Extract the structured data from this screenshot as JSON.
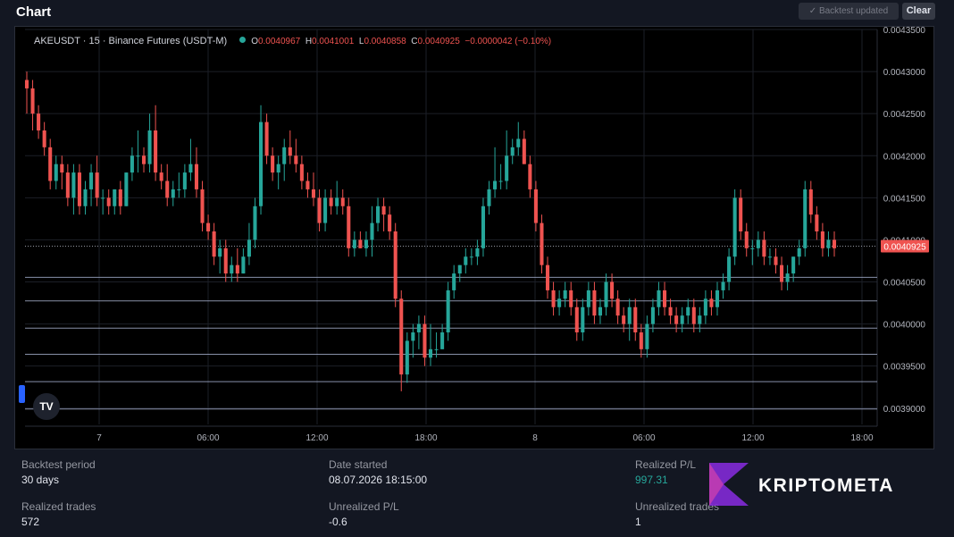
{
  "window": {
    "title": "Chart"
  },
  "toolbar": {
    "status_label": "✓ Backtest updated",
    "clear_label": "Clear"
  },
  "legend": {
    "symbol": "AKEUSDT · 15 · Binance Futures (USDT-M)",
    "open_label": "O",
    "open": "0.0040967",
    "high_label": "H",
    "high": "0.0041001",
    "low_label": "L",
    "low": "0.0040858",
    "close_label": "C",
    "close": "0.0040925",
    "change": "−0.0000042 (−0.10%)"
  },
  "colors": {
    "up": "#26a69a",
    "down": "#ef5350",
    "background": "#000000",
    "level_line": "#aab4d4"
  },
  "chart_data": {
    "type": "candlestick",
    "title": "",
    "price_axis_ticks": [
      "0.0043500",
      "0.0043000",
      "0.0042500",
      "0.0042000",
      "0.0041500",
      "0.0041000",
      "0.0040500",
      "0.0040000",
      "0.0039500",
      "0.0039000"
    ],
    "time_axis_ticks": [
      "7",
      "06:00",
      "12:00",
      "18:00",
      "8",
      "06:00",
      "12:00",
      "18:00"
    ],
    "ylim": [
      0.0038955,
      0.00435
    ],
    "last_price_label": "0.0040925",
    "last_price": 0.0040925,
    "level_lines": [
      0.0040555,
      0.0040275,
      0.003995,
      0.003964,
      0.0039315,
      0.003899
    ],
    "grid": true,
    "candles": [
      [
        0.00429,
        0.0043,
        0.00425,
        0.00428
      ],
      [
        0.00428,
        0.00429,
        0.00423,
        0.00425
      ],
      [
        0.00425,
        0.00426,
        0.00422,
        0.00423
      ],
      [
        0.00423,
        0.00424,
        0.0042,
        0.00421
      ],
      [
        0.00421,
        0.00422,
        0.00416,
        0.00417
      ],
      [
        0.00417,
        0.0042,
        0.00416,
        0.00419
      ],
      [
        0.00419,
        0.0042,
        0.00416,
        0.00418
      ],
      [
        0.00418,
        0.00419,
        0.00414,
        0.00415
      ],
      [
        0.00415,
        0.00419,
        0.00413,
        0.00418
      ],
      [
        0.00418,
        0.00419,
        0.00413,
        0.00414
      ],
      [
        0.00414,
        0.00417,
        0.00413,
        0.00416
      ],
      [
        0.00416,
        0.00419,
        0.00414,
        0.00418
      ],
      [
        0.00418,
        0.0042,
        0.00414,
        0.00415
      ],
      [
        0.00415,
        0.00416,
        0.00413,
        0.00415
      ],
      [
        0.00415,
        0.00416,
        0.00413,
        0.00414
      ],
      [
        0.00414,
        0.00416,
        0.00413,
        0.00416
      ],
      [
        0.00416,
        0.00417,
        0.00413,
        0.00414
      ],
      [
        0.00414,
        0.00418,
        0.00414,
        0.00418
      ],
      [
        0.00418,
        0.00421,
        0.00417,
        0.0042
      ],
      [
        0.0042,
        0.00423,
        0.00418,
        0.0042
      ],
      [
        0.0042,
        0.00421,
        0.00418,
        0.00419
      ],
      [
        0.00419,
        0.00425,
        0.00418,
        0.00423
      ],
      [
        0.00423,
        0.00426,
        0.00417,
        0.00418
      ],
      [
        0.00418,
        0.00419,
        0.00416,
        0.00417
      ],
      [
        0.00417,
        0.00419,
        0.00414,
        0.00415
      ],
      [
        0.00415,
        0.00417,
        0.00414,
        0.00416
      ],
      [
        0.00416,
        0.00418,
        0.00415,
        0.00416
      ],
      [
        0.00416,
        0.00419,
        0.00415,
        0.00418
      ],
      [
        0.00418,
        0.00422,
        0.00417,
        0.00419
      ],
      [
        0.00419,
        0.00421,
        0.00415,
        0.00416
      ],
      [
        0.00416,
        0.00417,
        0.00411,
        0.00412
      ],
      [
        0.00412,
        0.00413,
        0.0041,
        0.00411
      ],
      [
        0.00411,
        0.00412,
        0.00407,
        0.00408
      ],
      [
        0.00408,
        0.0041,
        0.00406,
        0.00409
      ],
      [
        0.00409,
        0.0041,
        0.00405,
        0.00406
      ],
      [
        0.00406,
        0.00408,
        0.00405,
        0.00407
      ],
      [
        0.00407,
        0.00409,
        0.00405,
        0.00406
      ],
      [
        0.00406,
        0.00409,
        0.00406,
        0.00408
      ],
      [
        0.00408,
        0.00412,
        0.00407,
        0.0041
      ],
      [
        0.0041,
        0.00415,
        0.00409,
        0.00414
      ],
      [
        0.00414,
        0.00426,
        0.00413,
        0.00424
      ],
      [
        0.00424,
        0.00425,
        0.00419,
        0.0042
      ],
      [
        0.0042,
        0.00421,
        0.00417,
        0.00418
      ],
      [
        0.00418,
        0.0042,
        0.00416,
        0.00419
      ],
      [
        0.00419,
        0.00422,
        0.00417,
        0.00421
      ],
      [
        0.00421,
        0.00423,
        0.00419,
        0.0042
      ],
      [
        0.0042,
        0.00422,
        0.00418,
        0.00419
      ],
      [
        0.00419,
        0.0042,
        0.00416,
        0.00417
      ],
      [
        0.00417,
        0.00418,
        0.00415,
        0.00416
      ],
      [
        0.00416,
        0.00418,
        0.00414,
        0.00415
      ],
      [
        0.00415,
        0.00416,
        0.00411,
        0.00412
      ],
      [
        0.00412,
        0.00416,
        0.00411,
        0.00415
      ],
      [
        0.00415,
        0.00416,
        0.00413,
        0.00414
      ],
      [
        0.00414,
        0.00417,
        0.00413,
        0.00415
      ],
      [
        0.00415,
        0.00416,
        0.00413,
        0.00414
      ],
      [
        0.00414,
        0.00415,
        0.00408,
        0.00409
      ],
      [
        0.00409,
        0.00411,
        0.00408,
        0.0041
      ],
      [
        0.0041,
        0.00411,
        0.00409,
        0.00409
      ],
      [
        0.00409,
        0.00411,
        0.00408,
        0.0041
      ],
      [
        0.0041,
        0.00414,
        0.00408,
        0.00412
      ],
      [
        0.00412,
        0.00415,
        0.00411,
        0.00414
      ],
      [
        0.00414,
        0.00415,
        0.00411,
        0.00413
      ],
      [
        0.00413,
        0.00414,
        0.0041,
        0.00411
      ],
      [
        0.00411,
        0.00412,
        0.00402,
        0.00403
      ],
      [
        0.00403,
        0.00404,
        0.00392,
        0.00394
      ],
      [
        0.00394,
        0.00399,
        0.00393,
        0.00398
      ],
      [
        0.00398,
        0.004,
        0.00396,
        0.00399
      ],
      [
        0.00399,
        0.00401,
        0.00397,
        0.004
      ],
      [
        0.004,
        0.00401,
        0.00395,
        0.00396
      ],
      [
        0.00396,
        0.004,
        0.00395,
        0.00397
      ],
      [
        0.00397,
        0.00399,
        0.00396,
        0.00397
      ],
      [
        0.00397,
        0.004,
        0.00397,
        0.00399
      ],
      [
        0.00399,
        0.00405,
        0.00398,
        0.00404
      ],
      [
        0.00404,
        0.00407,
        0.00403,
        0.00406
      ],
      [
        0.00406,
        0.00407,
        0.00405,
        0.00407
      ],
      [
        0.00407,
        0.00409,
        0.00406,
        0.00408
      ],
      [
        0.00408,
        0.00409,
        0.00407,
        0.00408
      ],
      [
        0.00408,
        0.0041,
        0.00407,
        0.00409
      ],
      [
        0.00409,
        0.00415,
        0.00408,
        0.00414
      ],
      [
        0.00414,
        0.00417,
        0.00413,
        0.00416
      ],
      [
        0.00416,
        0.00421,
        0.00415,
        0.00417
      ],
      [
        0.00417,
        0.00419,
        0.00416,
        0.00417
      ],
      [
        0.00417,
        0.00423,
        0.00416,
        0.0042
      ],
      [
        0.0042,
        0.00422,
        0.00419,
        0.00421
      ],
      [
        0.00421,
        0.00424,
        0.0042,
        0.00422
      ],
      [
        0.00422,
        0.00423,
        0.00419,
        0.00419
      ],
      [
        0.00419,
        0.0042,
        0.00415,
        0.00416
      ],
      [
        0.00416,
        0.00417,
        0.00411,
        0.00412
      ],
      [
        0.00412,
        0.00413,
        0.00406,
        0.00407
      ],
      [
        0.00407,
        0.00408,
        0.00403,
        0.00404
      ],
      [
        0.00404,
        0.00405,
        0.00401,
        0.00402
      ],
      [
        0.00402,
        0.00404,
        0.00401,
        0.00403
      ],
      [
        0.00403,
        0.00405,
        0.00402,
        0.00404
      ],
      [
        0.00404,
        0.00405,
        0.00401,
        0.00402
      ],
      [
        0.00402,
        0.00403,
        0.00398,
        0.00399
      ],
      [
        0.00399,
        0.00403,
        0.00398,
        0.00402
      ],
      [
        0.00402,
        0.00405,
        0.00401,
        0.00404
      ],
      [
        0.00404,
        0.00405,
        0.004,
        0.00401
      ],
      [
        0.00401,
        0.00403,
        0.004,
        0.00402
      ],
      [
        0.00402,
        0.00406,
        0.00401,
        0.00405
      ],
      [
        0.00405,
        0.00406,
        0.00402,
        0.00403
      ],
      [
        0.00403,
        0.00404,
        0.004,
        0.00401
      ],
      [
        0.00401,
        0.00402,
        0.00399,
        0.004
      ],
      [
        0.004,
        0.00403,
        0.00398,
        0.00402
      ],
      [
        0.00402,
        0.00403,
        0.00398,
        0.00399
      ],
      [
        0.00399,
        0.004,
        0.00396,
        0.00397
      ],
      [
        0.00397,
        0.00401,
        0.00396,
        0.004
      ],
      [
        0.004,
        0.00403,
        0.00399,
        0.00402
      ],
      [
        0.00402,
        0.00405,
        0.00401,
        0.00404
      ],
      [
        0.00404,
        0.00405,
        0.00401,
        0.00402
      ],
      [
        0.00402,
        0.00403,
        0.004,
        0.00401
      ],
      [
        0.00401,
        0.00402,
        0.00399,
        0.004
      ],
      [
        0.004,
        0.00402,
        0.00399,
        0.00401
      ],
      [
        0.00401,
        0.00403,
        0.004,
        0.00402
      ],
      [
        0.00402,
        0.00403,
        0.00399,
        0.004
      ],
      [
        0.004,
        0.00402,
        0.00399,
        0.00401
      ],
      [
        0.00401,
        0.00404,
        0.004,
        0.00403
      ],
      [
        0.00403,
        0.00404,
        0.00401,
        0.00402
      ],
      [
        0.00402,
        0.00405,
        0.00401,
        0.00404
      ],
      [
        0.00404,
        0.00406,
        0.00403,
        0.00405
      ],
      [
        0.00405,
        0.00409,
        0.00404,
        0.00408
      ],
      [
        0.00408,
        0.00416,
        0.00407,
        0.00415
      ],
      [
        0.00415,
        0.00416,
        0.0041,
        0.00411
      ],
      [
        0.00411,
        0.00412,
        0.00408,
        0.00409
      ],
      [
        0.00409,
        0.0041,
        0.00407,
        0.00409
      ],
      [
        0.00409,
        0.00411,
        0.00408,
        0.0041
      ],
      [
        0.0041,
        0.00411,
        0.00407,
        0.00408
      ],
      [
        0.00408,
        0.00409,
        0.00407,
        0.00408
      ],
      [
        0.00408,
        0.00409,
        0.00406,
        0.00407
      ],
      [
        0.00407,
        0.00408,
        0.00404,
        0.00405
      ],
      [
        0.00405,
        0.00407,
        0.00404,
        0.00406
      ],
      [
        0.00406,
        0.00408,
        0.00405,
        0.00408
      ],
      [
        0.00408,
        0.0041,
        0.00407,
        0.00409
      ],
      [
        0.00409,
        0.00417,
        0.00408,
        0.00416
      ],
      [
        0.00416,
        0.00417,
        0.00412,
        0.00413
      ],
      [
        0.00413,
        0.00414,
        0.0041,
        0.00411
      ],
      [
        0.00411,
        0.00412,
        0.00408,
        0.00409
      ],
      [
        0.00409,
        0.00411,
        0.00408,
        0.0041
      ],
      [
        0.0041,
        0.00411,
        0.00408,
        0.00409
      ]
    ]
  },
  "stats": {
    "backtest_period_label": "Backtest period",
    "backtest_period": "30 days",
    "date_started_label": "Date started",
    "date_started": "08.07.2026 18:15:00",
    "realized_pl_label": "Realized P/L",
    "realized_pl": "997.31",
    "realized_trades_label": "Realized trades",
    "realized_trades": "572",
    "unrealized_pl_label": "Unrealized P/L",
    "unrealized_pl": "-0.6",
    "unrealized_trades_label": "Unrealized trades",
    "unrealized_trades": "1"
  },
  "watermark": {
    "text": "KRIPTOMETA"
  },
  "tv_badge": {
    "text": "TV"
  }
}
